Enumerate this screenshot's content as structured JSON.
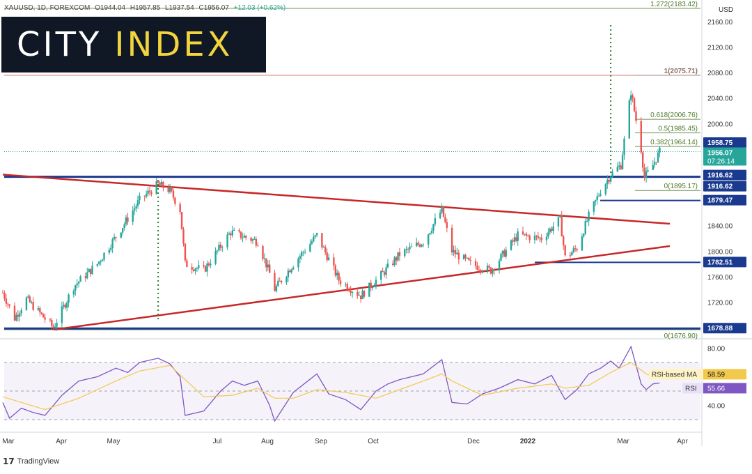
{
  "header": {
    "symbol": "XAUUSD, 1D, FOREXCOM",
    "open": "O1944.04",
    "high": "H1957.85",
    "low": "L1937.54",
    "close": "C1956.07",
    "change": "+12.03 (+0.62%)"
  },
  "logo": {
    "word1": "CITY",
    "word2": "INDEX"
  },
  "footer": {
    "brand": "TradingView",
    "glyph": "17"
  },
  "colors": {
    "up": "#26a69a",
    "down": "#ef5350",
    "trendline": "#c62828",
    "support": "#1a3a8f",
    "fib": "#4f7a2b",
    "rsi": "#7e57c2",
    "rsi_ma": "#f2c94c",
    "price_tag": "#26a69a"
  },
  "chart_data": [
    {
      "type": "candlestick",
      "title": "XAUUSD, 1D, FOREXCOM",
      "currency": "USD",
      "x_labels": [
        "Mar",
        "Apr",
        "May",
        "Jul",
        "Aug",
        "Sep",
        "Oct",
        "Dec",
        "2022",
        "Mar",
        "Apr"
      ],
      "y_ticks": [
        "2160.00",
        "2120.00",
        "2080.00",
        "2040.00",
        "2000.00",
        "1840.00",
        "1800.00",
        "1760.00",
        "1720.00"
      ],
      "ylim": [
        1675,
        2170
      ],
      "close_path": [
        [
          "2021-03-01",
          1735
        ],
        [
          "2021-03-08",
          1695
        ],
        [
          "2021-03-15",
          1725
        ],
        [
          "2021-03-31",
          1680
        ],
        [
          "2021-04-12",
          1745
        ],
        [
          "2021-04-26",
          1780
        ],
        [
          "2021-05-10",
          1835
        ],
        [
          "2021-05-21",
          1880
        ],
        [
          "2021-06-01",
          1905
        ],
        [
          "2021-06-08",
          1895
        ],
        [
          "2021-06-14",
          1865
        ],
        [
          "2021-06-17",
          1780
        ],
        [
          "2021-06-28",
          1770
        ],
        [
          "2021-07-14",
          1830
        ],
        [
          "2021-07-30",
          1815
        ],
        [
          "2021-08-06",
          1765
        ],
        [
          "2021-08-09",
          1740
        ],
        [
          "2021-08-20",
          1780
        ],
        [
          "2021-09-03",
          1825
        ],
        [
          "2021-09-16",
          1755
        ],
        [
          "2021-09-29",
          1730
        ],
        [
          "2021-10-12",
          1765
        ],
        [
          "2021-10-22",
          1795
        ],
        [
          "2021-11-05",
          1815
        ],
        [
          "2021-11-16",
          1865
        ],
        [
          "2021-11-22",
          1800
        ],
        [
          "2021-12-03",
          1780
        ],
        [
          "2021-12-15",
          1770
        ],
        [
          "2021-12-31",
          1825
        ],
        [
          "2022-01-14",
          1820
        ],
        [
          "2022-01-25",
          1850
        ],
        [
          "2022-01-28",
          1790
        ],
        [
          "2022-02-04",
          1805
        ],
        [
          "2022-02-11",
          1855
        ],
        [
          "2022-02-18",
          1895
        ],
        [
          "2022-02-24",
          1920
        ],
        [
          "2022-03-02",
          1935
        ],
        [
          "2022-03-08",
          2050
        ],
        [
          "2022-03-14",
          1960
        ],
        [
          "2022-03-16",
          1915
        ],
        [
          "2022-03-21",
          1935
        ],
        [
          "2022-03-25",
          1956
        ]
      ],
      "levels": [
        {
          "label": "1958.75",
          "price": 1958.75,
          "tag": "box"
        },
        {
          "label": "1956.07",
          "price": 1956.07,
          "tag": "last",
          "timer": "07:26:14"
        },
        {
          "label": "1916.62",
          "price": 1916.62,
          "tag": "box"
        },
        {
          "label": "1916.62",
          "price": 1916.62,
          "tag": "box"
        },
        {
          "label": "1879.47",
          "price": 1879.47,
          "tag": "box"
        },
        {
          "label": "1782.51",
          "price": 1782.51,
          "tag": "box"
        },
        {
          "label": "1678.88",
          "price": 1678.88,
          "tag": "box"
        }
      ],
      "fibonacci": [
        {
          "label": "1.272(2183.42)",
          "price": 2183.42
        },
        {
          "label": "1(2075.71)",
          "price": 2075.71
        },
        {
          "label": "0.618(2006.76)",
          "price": 2006.76
        },
        {
          "label": "0.5(1985.45)",
          "price": 1985.45
        },
        {
          "label": "0.382(1964.14)",
          "price": 1964.14
        },
        {
          "label": "0(1895.17)",
          "price": 1895.17
        },
        {
          "label": "0(1676.90)",
          "price": 1676.9
        }
      ],
      "trendlines": [
        {
          "name": "upper",
          "from": [
            "2021-03-01",
            1920
          ],
          "to": [
            "2022-03-31",
            1843
          ]
        },
        {
          "name": "lower",
          "from": [
            "2021-03-31",
            1677
          ],
          "to": [
            "2022-03-31",
            1808
          ]
        }
      ],
      "vertical_markers": [
        "2021-06-01",
        "2022-02-24"
      ],
      "grid": false
    },
    {
      "type": "line",
      "title": "RSI",
      "y_ticks": [
        "80.00",
        "40.00"
      ],
      "ylim": [
        25,
        88
      ],
      "bands": [
        70,
        30
      ],
      "midline": 50,
      "series": [
        {
          "name": "RSI",
          "last_label": "55.66",
          "values": [
            [
              "2021-03-01",
              42
            ],
            [
              "2021-03-05",
              31
            ],
            [
              "2021-03-12",
              38
            ],
            [
              "2021-03-19",
              35
            ],
            [
              "2021-03-26",
              33
            ],
            [
              "2021-04-05",
              47
            ],
            [
              "2021-04-15",
              57
            ],
            [
              "2021-04-26",
              60
            ],
            [
              "2021-05-07",
              66
            ],
            [
              "2021-05-14",
              63
            ],
            [
              "2021-05-21",
              70
            ],
            [
              "2021-06-01",
              73
            ],
            [
              "2021-06-08",
              69
            ],
            [
              "2021-06-14",
              60
            ],
            [
              "2021-06-17",
              33
            ],
            [
              "2021-06-28",
              36
            ],
            [
              "2021-07-08",
              50
            ],
            [
              "2021-07-15",
              57
            ],
            [
              "2021-07-22",
              54
            ],
            [
              "2021-07-30",
              57
            ],
            [
              "2021-08-06",
              40
            ],
            [
              "2021-08-09",
              29
            ],
            [
              "2021-08-20",
              49
            ],
            [
              "2021-09-03",
              62
            ],
            [
              "2021-09-10",
              48
            ],
            [
              "2021-09-20",
              44
            ],
            [
              "2021-09-29",
              37
            ],
            [
              "2021-10-08",
              50
            ],
            [
              "2021-10-15",
              55
            ],
            [
              "2021-10-22",
              58
            ],
            [
              "2021-11-05",
              62
            ],
            [
              "2021-11-16",
              72
            ],
            [
              "2021-11-22",
              42
            ],
            [
              "2021-12-01",
              41
            ],
            [
              "2021-12-10",
              48
            ],
            [
              "2021-12-20",
              52
            ],
            [
              "2021-12-31",
              58
            ],
            [
              "2022-01-10",
              55
            ],
            [
              "2022-01-20",
              61
            ],
            [
              "2022-01-28",
              44
            ],
            [
              "2022-02-04",
              51
            ],
            [
              "2022-02-11",
              62
            ],
            [
              "2022-02-18",
              66
            ],
            [
              "2022-02-24",
              71
            ],
            [
              "2022-03-01",
              66
            ],
            [
              "2022-03-08",
              81
            ],
            [
              "2022-03-14",
              55
            ],
            [
              "2022-03-17",
              51
            ],
            [
              "2022-03-21",
              55
            ],
            [
              "2022-03-25",
              55.66
            ]
          ]
        },
        {
          "name": "RSI-based MA",
          "last_label": "58.59",
          "values": [
            [
              "2021-03-01",
              46
            ],
            [
              "2021-03-26",
              37
            ],
            [
              "2021-04-15",
              45
            ],
            [
              "2021-05-07",
              57
            ],
            [
              "2021-05-21",
              64
            ],
            [
              "2021-06-08",
              68
            ],
            [
              "2021-06-17",
              58
            ],
            [
              "2021-06-28",
              46
            ],
            [
              "2021-07-15",
              47
            ],
            [
              "2021-07-30",
              52
            ],
            [
              "2021-08-09",
              45
            ],
            [
              "2021-08-20",
              45
            ],
            [
              "2021-09-03",
              51
            ],
            [
              "2021-09-20",
              49
            ],
            [
              "2021-10-08",
              45
            ],
            [
              "2021-10-22",
              51
            ],
            [
              "2021-11-05",
              57
            ],
            [
              "2021-11-16",
              62
            ],
            [
              "2021-11-22",
              57
            ],
            [
              "2021-12-10",
              47
            ],
            [
              "2021-12-31",
              52
            ],
            [
              "2022-01-20",
              55
            ],
            [
              "2022-01-28",
              52
            ],
            [
              "2022-02-11",
              54
            ],
            [
              "2022-02-24",
              63
            ],
            [
              "2022-03-08",
              70
            ],
            [
              "2022-03-17",
              62
            ],
            [
              "2022-03-25",
              58.59
            ]
          ]
        }
      ]
    }
  ]
}
